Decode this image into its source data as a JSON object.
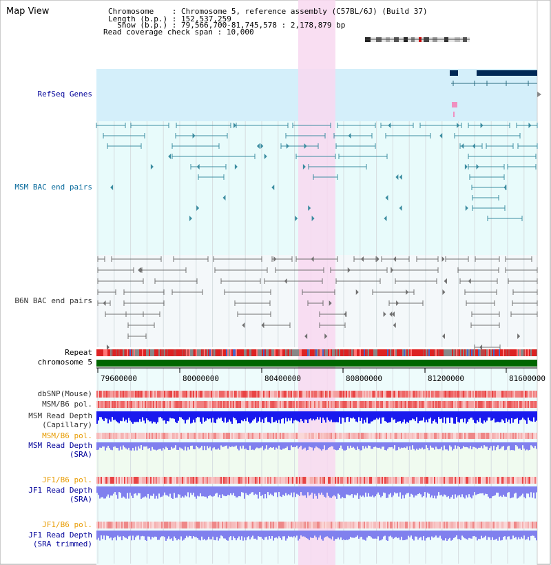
{
  "app": {
    "title": "Map View"
  },
  "header": {
    "lines": [
      {
        "key": "Chromosome    ",
        "sep": ": ",
        "value": "Chromosome 5, reference assembly (C57BL/6J) (Build 37)"
      },
      {
        "key": "Length (b.p.) ",
        "sep": ": ",
        "value": "152,537,259"
      },
      {
        "key": "  Show (b.p.) ",
        "sep": ": ",
        "value": "79,566,700-81,745,578 : 2,178,879 bp"
      },
      {
        "key": "Read coverage check span ",
        "sep": ": ",
        "value": "10,000"
      }
    ]
  },
  "tracks": {
    "refseq": {
      "label": "RefSeq Genes",
      "color": "#000099"
    },
    "msm_bac": {
      "label": "MSM BAC end pairs",
      "color": "#006699"
    },
    "b6n_bac": {
      "label": "B6N BAC end pairs",
      "color": "#333333"
    },
    "repeat": {
      "label": "Repeat"
    },
    "chromosome": {
      "label": "chromosome 5"
    },
    "dbsnp": {
      "label": "dbSNP(Mouse)"
    },
    "msm_b6_pol": {
      "label": "MSM/B6 pol."
    },
    "msm_read_depth_cap": {
      "label1": "MSM Read Depth",
      "label2": "(Capillary)"
    },
    "msm_b6_pol_sra": {
      "label": "MSM/B6 pol.",
      "color": "#e89b00"
    },
    "msm_read_depth_sra": {
      "label1": "MSM Read Depth",
      "label2": "(SRA)",
      "color": "#000099"
    },
    "jf1_b6_pol": {
      "label": "JF1/B6 pol.",
      "color": "#e89b00"
    },
    "jf1_read_depth_sra": {
      "label1": "JF1 Read Depth",
      "label2": "(SRA)",
      "color": "#000099"
    },
    "jf1_b6_pol_trim": {
      "label": "JF1/B6 pol.",
      "color": "#e89b00"
    },
    "jf1_read_depth_trim": {
      "label1": "JF1 Read Depth",
      "label2": "(SRA trimmed)",
      "color": "#000099"
    }
  },
  "axis": {
    "ticks": [
      "79600000",
      "80000000",
      "80400000",
      "80800000",
      "81200000",
      "81600000"
    ]
  },
  "colors": {
    "highlight": "#f8d8f0",
    "refseq_bg": "#d4effa",
    "msm_bg": "#e8fbfb",
    "b6n_bg": "#f4f8fa",
    "gene_dark": "#002855",
    "msm_feature": "#3b8ca0",
    "b6n_feature": "#707070",
    "chromosome_bar": "#006600",
    "read_depth_cap": "#1a1aee",
    "read_depth_sra": "#8080ee"
  }
}
